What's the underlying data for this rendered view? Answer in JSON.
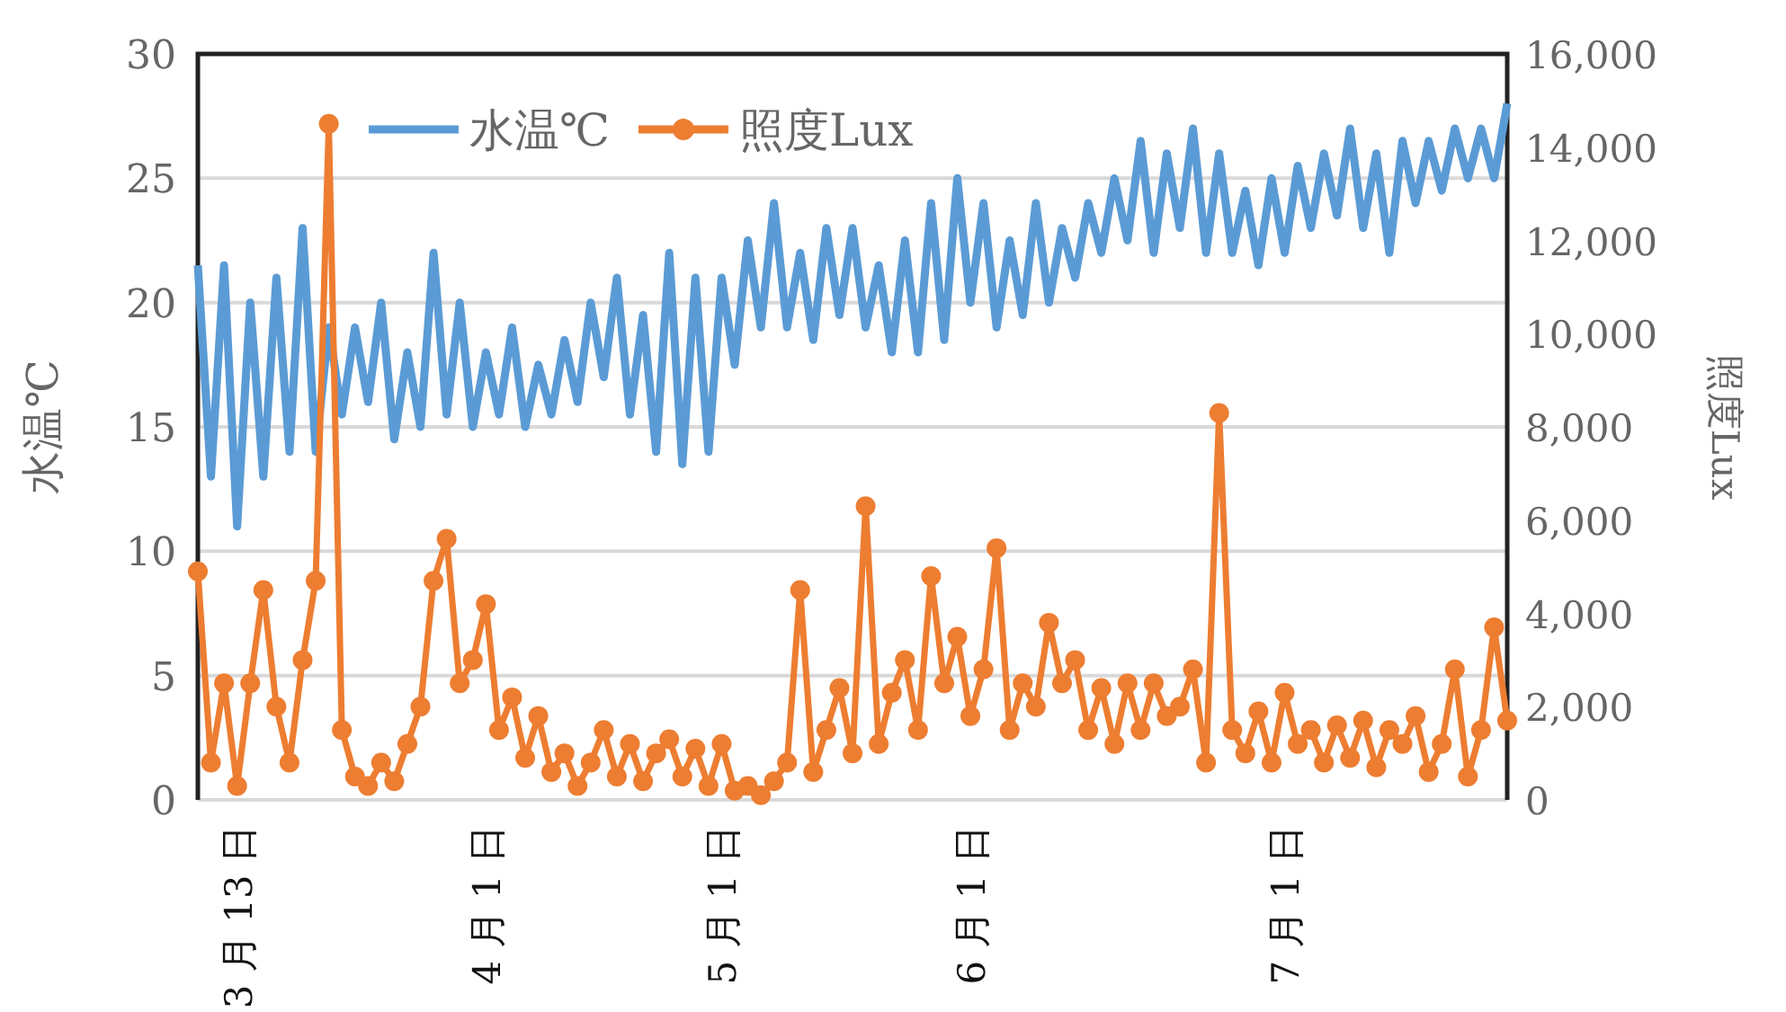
{
  "chart_data": {
    "type": "line",
    "ylabel": "水温℃",
    "y2label": "照度Lux",
    "grid": "y",
    "legend": "top left",
    "categories": [
      null,
      null,
      null,
      "3 月 13 日",
      null,
      null,
      null,
      null,
      null,
      null,
      null,
      null,
      null,
      null,
      null,
      null,
      null,
      null,
      null,
      null,
      null,
      null,
      "4 月 1 日",
      null,
      null,
      null,
      null,
      null,
      null,
      null,
      null,
      null,
      null,
      null,
      null,
      null,
      null,
      null,
      null,
      null,
      "5 月 1 日",
      null,
      null,
      null,
      null,
      null,
      null,
      null,
      null,
      null,
      null,
      null,
      null,
      null,
      null,
      null,
      null,
      null,
      null,
      "6 月 1 日",
      null,
      null,
      null,
      null,
      null,
      null,
      null,
      null,
      null,
      null,
      null,
      null,
      null,
      null,
      null,
      null,
      null,
      null,
      null,
      null,
      null,
      null,
      null,
      "7 月 1 日",
      null,
      null,
      null,
      null,
      null,
      null,
      null,
      null,
      null,
      null,
      null,
      null,
      null,
      null,
      null,
      null,
      null
    ],
    "ylim": [
      0,
      30
    ],
    "yticks": [
      0,
      5,
      10,
      15,
      20,
      25,
      30
    ],
    "y2lim": [
      0,
      16000
    ],
    "y2ticks": [
      0,
      {
        "value": 2000,
        "label": "2,000"
      },
      {
        "value": 4000,
        "label": "4,000"
      },
      {
        "value": 6000,
        "label": "6,000"
      },
      {
        "value": 8000,
        "label": "8,000"
      },
      {
        "value": 10000,
        "label": "10,000"
      },
      {
        "value": 12000,
        "label": "12,000"
      },
      {
        "value": 14000,
        "label": "14,000"
      },
      {
        "value": 16000,
        "label": "16,000"
      }
    ],
    "series": [
      {
        "name": "水温℃",
        "color": "#5b9bd5",
        "marker": "none",
        "values": [
          21.5,
          13,
          21.5,
          11,
          20,
          13,
          21,
          14,
          23,
          14,
          19,
          15.5,
          19,
          16,
          20,
          14.5,
          18,
          15,
          22,
          15.5,
          20,
          15,
          18,
          15.5,
          19,
          15,
          17.5,
          15.5,
          18.5,
          16,
          20,
          17,
          21,
          15.5,
          19.5,
          14,
          22,
          13.5,
          21,
          14,
          21,
          17.5,
          22.5,
          19,
          24,
          19,
          22,
          18.5,
          23,
          19.5,
          23,
          19,
          21.5,
          18,
          22.5,
          18,
          24,
          18.5,
          25,
          20,
          24,
          19,
          22.5,
          19.5,
          24,
          20,
          23,
          21,
          24,
          22,
          25,
          22.5,
          26.5,
          22,
          26,
          23,
          27,
          22,
          26,
          22,
          24.5,
          21.5,
          25,
          22,
          25.5,
          23,
          26,
          23.5,
          27,
          23,
          26,
          22,
          26.5,
          24,
          26.5,
          24.5,
          27,
          25,
          27,
          25,
          28
        ]
      },
      {
        "name": "照度Lux",
        "color": "#ed7d31",
        "axis": "y2",
        "marker": "circle",
        "values": [
          4900,
          800,
          2500,
          300,
          2500,
          4500,
          2000,
          800,
          3000,
          4700,
          14500,
          1500,
          500,
          300,
          800,
          400,
          1200,
          2000,
          4700,
          5600,
          2500,
          3000,
          4200,
          1500,
          2200,
          900,
          1800,
          600,
          1000,
          300,
          800,
          1500,
          500,
          1200,
          400,
          1000,
          1300,
          500,
          1100,
          300,
          1200,
          200,
          300,
          100,
          400,
          800,
          4500,
          600,
          1500,
          2400,
          1000,
          6300,
          1200,
          2300,
          3000,
          1500,
          4800,
          2500,
          3500,
          1800,
          2800,
          5400,
          1500,
          2500,
          2000,
          3800,
          2500,
          3000,
          1500,
          2400,
          1200,
          2500,
          1500,
          2500,
          1800,
          2000,
          2800,
          800,
          8300,
          1500,
          1000,
          1900,
          800,
          2300,
          1200,
          1500,
          800,
          1600,
          900,
          1700,
          700,
          1500,
          1200,
          1800,
          600,
          1200,
          2800,
          500,
          1500,
          3700,
          1700
        ]
      }
    ]
  }
}
